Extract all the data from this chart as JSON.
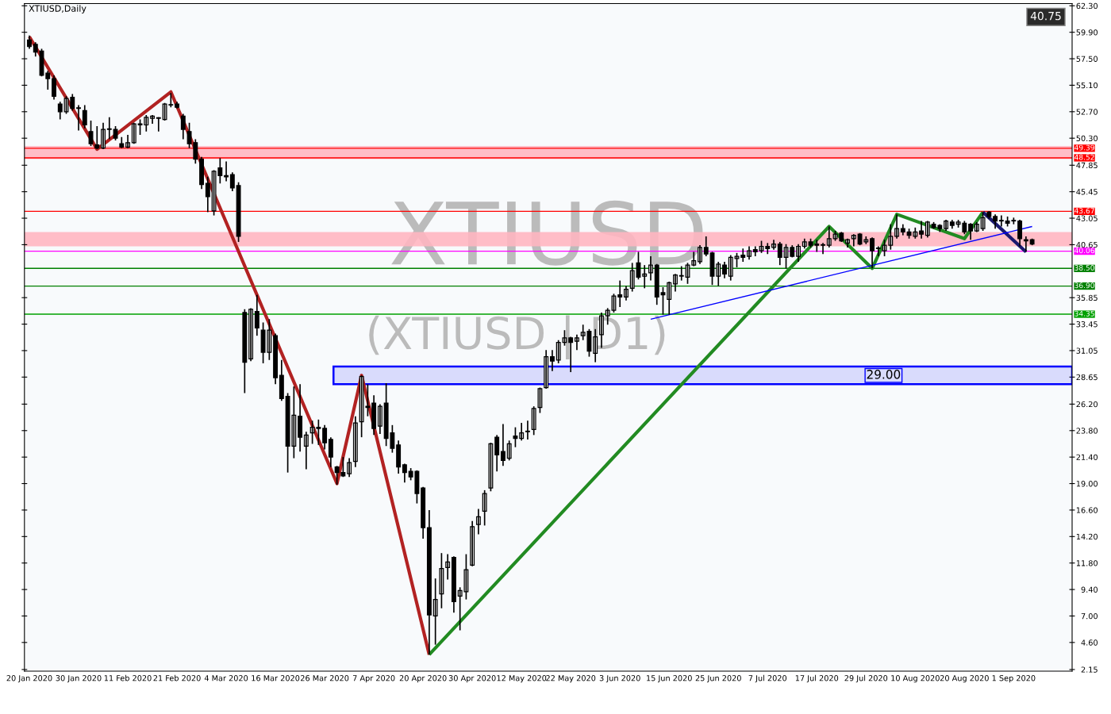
{
  "chart_data": {
    "type": "candlestick",
    "title": "XTIUSD,Daily",
    "color": "#000000",
    "categories": [
      "20 Jan 2020",
      null,
      null,
      null,
      null,
      null,
      null,
      null,
      "30 Jan 2020",
      null,
      null,
      null,
      null,
      null,
      null,
      null,
      "11 Feb 2020",
      null,
      null,
      null,
      null,
      null,
      null,
      null,
      "21 Feb 2020",
      null,
      null,
      null,
      null,
      null,
      null,
      null,
      "4 Mar 2020",
      null,
      null,
      null,
      null,
      null,
      null,
      null,
      "16 Mar 2020",
      null,
      null,
      null,
      null,
      null,
      null,
      null,
      "26 Mar 2020",
      null,
      null,
      null,
      null,
      null,
      null,
      null,
      "7 Apr 2020",
      null,
      null,
      null,
      null,
      null,
      null,
      null,
      "20 Apr 2020",
      null,
      null,
      null,
      null,
      null,
      null,
      null,
      "30 Apr 2020",
      null,
      null,
      null,
      null,
      null,
      null,
      null,
      "12 May 2020",
      null,
      null,
      null,
      null,
      null,
      null,
      null,
      "22 May 2020",
      null,
      null,
      null,
      null,
      null,
      null,
      null,
      "3 Jun 2020",
      null,
      null,
      null,
      null,
      null,
      null,
      null,
      "15 Jun 2020",
      null,
      null,
      null,
      null,
      null,
      null,
      null,
      "25 Jun 2020",
      null,
      null,
      null,
      null,
      null,
      null,
      null,
      "7 Jul 2020",
      null,
      null,
      null,
      null,
      null,
      null,
      null,
      "17 Jul 2020",
      null,
      null,
      null,
      null,
      null,
      null,
      null,
      "29 Jul 2020",
      null,
      null,
      null,
      null,
      null,
      null,
      null,
      "10 Aug 2020",
      null,
      null,
      null,
      null,
      null,
      null,
      null,
      "20 Aug 2020",
      null,
      null,
      null,
      null,
      null,
      null,
      null,
      "1 Sep 2020",
      null,
      null,
      null
    ],
    "ohlc": [
      [
        59.2,
        59.6,
        58.4,
        58.6
      ],
      [
        58.8,
        59.0,
        57.7,
        58.1
      ],
      [
        58.2,
        58.4,
        55.9,
        56.0
      ],
      [
        56.2,
        56.4,
        54.7,
        55.7
      ],
      [
        55.7,
        56.0,
        53.8,
        54.1
      ],
      [
        53.4,
        53.6,
        52.0,
        52.7
      ],
      [
        52.7,
        54.1,
        52.5,
        53.9
      ],
      [
        54.0,
        54.3,
        52.8,
        53.0
      ],
      [
        53.0,
        53.3,
        51.0,
        53.0
      ],
      [
        52.8,
        53.3,
        51.2,
        51.5
      ],
      [
        50.9,
        51.9,
        49.6,
        49.8
      ],
      [
        49.7,
        51.4,
        49.3,
        49.4
      ],
      [
        49.4,
        51.7,
        49.3,
        51.1
      ],
      [
        51.1,
        52.2,
        50.2,
        51.1
      ],
      [
        51.1,
        51.4,
        50.1,
        50.3
      ],
      [
        49.8,
        50.4,
        49.4,
        49.5
      ],
      [
        49.5,
        50.6,
        49.4,
        49.9
      ],
      [
        49.9,
        51.7,
        49.8,
        51.6
      ],
      [
        51.6,
        52.0,
        50.6,
        51.5
      ],
      [
        51.5,
        52.4,
        50.9,
        52.2
      ],
      [
        52.1,
        52.4,
        51.6,
        52.3
      ],
      [
        52.1,
        52.2,
        50.9,
        52.1
      ],
      [
        52.0,
        53.5,
        51.9,
        53.4
      ],
      [
        53.3,
        54.4,
        53.1,
        53.3
      ],
      [
        53.4,
        53.6,
        53.0,
        53.1
      ],
      [
        52.3,
        52.5,
        50.2,
        51.1
      ],
      [
        50.9,
        51.7,
        49.4,
        49.8
      ],
      [
        49.9,
        50.2,
        48.0,
        48.4
      ],
      [
        48.4,
        48.6,
        45.7,
        46.1
      ],
      [
        46.2,
        46.8,
        43.6,
        45.0
      ],
      [
        43.7,
        47.4,
        43.3,
        47.3
      ],
      [
        47.6,
        48.5,
        46.2,
        46.9
      ],
      [
        46.9,
        48.2,
        46.4,
        46.8
      ],
      [
        47.0,
        47.2,
        45.5,
        45.8
      ],
      [
        46.0,
        46.3,
        40.9,
        41.4
      ],
      [
        34.5,
        34.8,
        27.2,
        30.0
      ],
      [
        30.3,
        34.9,
        30.1,
        34.8
      ],
      [
        34.6,
        36.1,
        32.4,
        33.1
      ],
      [
        32.9,
        33.6,
        29.9,
        30.9
      ],
      [
        30.9,
        33.9,
        30.2,
        32.9
      ],
      [
        32.4,
        32.6,
        28.0,
        28.6
      ],
      [
        28.8,
        30.2,
        26.5,
        26.7
      ],
      [
        26.9,
        27.2,
        20.0,
        22.4
      ],
      [
        22.4,
        27.8,
        21.3,
        25.2
      ],
      [
        25.1,
        28.0,
        21.9,
        23.2
      ],
      [
        22.4,
        23.7,
        20.3,
        23.4
      ],
      [
        23.6,
        24.7,
        22.6,
        24.1
      ],
      [
        24.1,
        24.8,
        22.5,
        24.0
      ],
      [
        24.0,
        24.3,
        22.1,
        22.7
      ],
      [
        23.0,
        23.2,
        20.5,
        21.4
      ],
      [
        20.5,
        20.6,
        18.9,
        20.0
      ],
      [
        20.0,
        21.4,
        19.6,
        19.7
      ],
      [
        19.9,
        21.3,
        19.6,
        20.9
      ],
      [
        21.0,
        25.1,
        20.5,
        24.5
      ],
      [
        24.6,
        28.8,
        23.2,
        28.7
      ],
      [
        26.0,
        28.0,
        25.1,
        25.9
      ],
      [
        26.3,
        27.0,
        23.4,
        24.0
      ],
      [
        24.2,
        26.2,
        23.5,
        26.0
      ],
      [
        26.3,
        28.1,
        22.4,
        23.1
      ],
      [
        23.6,
        24.3,
        21.8,
        22.2
      ],
      [
        22.5,
        22.9,
        19.9,
        20.5
      ],
      [
        20.7,
        20.8,
        19.1,
        20.0
      ],
      [
        20.1,
        20.4,
        19.3,
        19.6
      ],
      [
        20.1,
        20.2,
        17.2,
        18.1
      ],
      [
        18.6,
        18.7,
        14.0,
        15.0
      ],
      [
        15.0,
        16.6,
        3.5,
        7.1
      ],
      [
        7.0,
        10.4,
        4.4,
        8.5
      ],
      [
        9.0,
        12.7,
        7.7,
        11.3
      ],
      [
        11.4,
        12.6,
        10.3,
        11.9
      ],
      [
        12.3,
        12.4,
        7.3,
        8.3
      ],
      [
        8.8,
        9.6,
        5.7,
        9.3
      ],
      [
        9.2,
        12.6,
        8.5,
        11.2
      ],
      [
        11.6,
        15.6,
        11.5,
        15.1
      ],
      [
        15.3,
        16.7,
        14.4,
        16.0
      ],
      [
        16.5,
        18.4,
        15.2,
        18.1
      ],
      [
        18.6,
        22.7,
        18.3,
        22.6
      ],
      [
        23.2,
        23.4,
        20.1,
        21.6
      ],
      [
        21.9,
        24.4,
        20.6,
        21.1
      ],
      [
        21.3,
        22.9,
        21.1,
        22.6
      ],
      [
        23.3,
        24.1,
        22.3,
        23.1
      ],
      [
        23.1,
        24.5,
        22.9,
        23.6
      ],
      [
        23.7,
        24.7,
        23.0,
        23.7
      ],
      [
        23.9,
        26.0,
        23.4,
        25.8
      ],
      [
        25.9,
        27.7,
        25.4,
        27.6
      ],
      [
        27.7,
        31.1,
        27.6,
        30.5
      ],
      [
        30.5,
        31.1,
        29.2,
        30.1
      ],
      [
        30.2,
        32.0,
        29.9,
        31.8
      ],
      [
        31.8,
        32.9,
        31.5,
        32.2
      ],
      [
        32.2,
        32.3,
        29.1,
        31.8
      ],
      [
        31.9,
        32.5,
        31.1,
        32.2
      ],
      [
        32.4,
        33.4,
        32.0,
        32.7
      ],
      [
        32.8,
        33.0,
        30.5,
        31.0
      ],
      [
        30.8,
        33.0,
        30.0,
        32.3
      ],
      [
        32.5,
        34.5,
        31.3,
        34.2
      ],
      [
        34.2,
        34.9,
        33.4,
        34.7
      ],
      [
        34.7,
        36.2,
        34.5,
        36.0
      ],
      [
        36.1,
        37.4,
        35.0,
        35.9
      ],
      [
        35.9,
        36.9,
        35.6,
        36.6
      ],
      [
        36.7,
        39.0,
        36.4,
        38.3
      ],
      [
        39.0,
        40.0,
        37.5,
        37.7
      ],
      [
        37.8,
        38.8,
        36.7,
        38.0
      ],
      [
        38.1,
        39.6,
        37.4,
        38.8
      ],
      [
        38.8,
        38.9,
        35.2,
        35.9
      ],
      [
        36.3,
        36.8,
        34.3,
        36.1
      ],
      [
        35.7,
        37.3,
        34.3,
        37.2
      ],
      [
        37.1,
        38.0,
        36.4,
        37.9
      ],
      [
        37.8,
        38.7,
        37.4,
        37.8
      ],
      [
        37.7,
        39.0,
        37.1,
        38.8
      ],
      [
        38.8,
        40.0,
        38.7,
        39.2
      ],
      [
        39.1,
        40.6,
        38.9,
        40.4
      ],
      [
        40.4,
        41.4,
        39.6,
        39.8
      ],
      [
        39.9,
        40.0,
        37.0,
        37.8
      ],
      [
        37.8,
        39.1,
        36.9,
        38.9
      ],
      [
        38.8,
        39.1,
        37.6,
        38.0
      ],
      [
        37.8,
        39.7,
        37.4,
        39.5
      ],
      [
        39.4,
        39.9,
        38.6,
        39.6
      ],
      [
        39.7,
        40.3,
        39.1,
        39.5
      ],
      [
        39.6,
        40.5,
        39.3,
        40.1
      ],
      [
        40.2,
        40.5,
        39.6,
        40.0
      ],
      [
        40.1,
        41.0,
        39.9,
        40.5
      ],
      [
        40.5,
        40.8,
        39.8,
        40.3
      ],
      [
        40.4,
        41.1,
        40.2,
        40.7
      ],
      [
        40.7,
        40.9,
        38.8,
        39.5
      ],
      [
        39.5,
        40.7,
        38.5,
        40.4
      ],
      [
        40.4,
        40.6,
        39.5,
        39.6
      ],
      [
        39.6,
        40.7,
        39.1,
        40.5
      ],
      [
        40.5,
        41.2,
        40.3,
        40.9
      ],
      [
        40.9,
        41.2,
        40.4,
        40.6
      ],
      [
        40.7,
        41.1,
        40.0,
        40.6
      ],
      [
        40.6,
        40.8,
        39.8,
        40.6
      ],
      [
        40.6,
        42.3,
        40.4,
        41.2
      ],
      [
        41.2,
        41.9,
        41.0,
        41.6
      ],
      [
        41.7,
        41.8,
        40.9,
        41.0
      ],
      [
        40.8,
        41.2,
        40.4,
        41.1
      ],
      [
        41.2,
        41.6,
        40.5,
        41.5
      ],
      [
        41.6,
        41.7,
        40.6,
        40.7
      ],
      [
        40.9,
        41.4,
        40.7,
        41.1
      ],
      [
        41.2,
        41.3,
        38.5,
        40.1
      ],
      [
        40.3,
        40.5,
        39.6,
        40.3
      ],
      [
        40.1,
        41.1,
        39.6,
        40.6
      ],
      [
        40.6,
        42.5,
        40.2,
        41.4
      ],
      [
        41.4,
        43.4,
        41.2,
        42.1
      ],
      [
        42.1,
        42.5,
        41.5,
        41.8
      ],
      [
        41.8,
        42.1,
        41.2,
        41.5
      ],
      [
        41.4,
        42.2,
        41.2,
        41.8
      ],
      [
        41.9,
        42.8,
        41.2,
        41.6
      ],
      [
        41.5,
        42.8,
        41.3,
        42.7
      ],
      [
        42.5,
        42.7,
        42.1,
        42.2
      ],
      [
        42.4,
        42.5,
        41.8,
        42.1
      ],
      [
        42.1,
        42.9,
        41.9,
        42.8
      ],
      [
        42.7,
        42.9,
        42.1,
        42.4
      ],
      [
        42.5,
        42.9,
        42.2,
        42.7
      ],
      [
        42.6,
        42.8,
        41.6,
        41.8
      ],
      [
        42.5,
        42.6,
        41.1,
        41.9
      ],
      [
        41.9,
        42.7,
        41.8,
        42.5
      ],
      [
        42.1,
        43.6,
        41.9,
        43.1
      ],
      [
        43.6,
        43.7,
        43.0,
        43.2
      ],
      [
        43.2,
        43.4,
        42.1,
        42.8
      ],
      [
        42.8,
        43.3,
        42.3,
        42.8
      ],
      [
        42.8,
        43.2,
        42.3,
        42.6
      ],
      [
        42.8,
        43.1,
        42.5,
        42.8
      ],
      [
        42.8,
        42.9,
        40.5,
        41.2
      ],
      [
        41.1,
        41.4,
        40.0,
        41.0
      ],
      [
        41.1,
        41.2,
        40.6,
        40.7
      ]
    ],
    "series": [
      {
        "type": "line",
        "color": "#b22222",
        "values": [
          59.5,
          null,
          null,
          null,
          null,
          null,
          null,
          null,
          null,
          null,
          null,
          49.3,
          null,
          null,
          null,
          null,
          null,
          null,
          null,
          null,
          null,
          null,
          null,
          54.5,
          null,
          null,
          null,
          null,
          null,
          null,
          null,
          null,
          null,
          null,
          null,
          null,
          null,
          null,
          null,
          null,
          null,
          null,
          null,
          null,
          null,
          null,
          null,
          null,
          null,
          null,
          19.0,
          null,
          null,
          null,
          28.8,
          null,
          null,
          null,
          null,
          null,
          null,
          null,
          null,
          null,
          null,
          3.5,
          null,
          null,
          null,
          null,
          null,
          null,
          null,
          null,
          null,
          null,
          null,
          null,
          null,
          null,
          null,
          null,
          null,
          null,
          null,
          null,
          null,
          null,
          null,
          null,
          null,
          null,
          null,
          null,
          null,
          null,
          null,
          null,
          null,
          null,
          null,
          null,
          null,
          null,
          null,
          null,
          null,
          null,
          null,
          null,
          null,
          null,
          null,
          null,
          null,
          null,
          null,
          null,
          null,
          null,
          null,
          null,
          null,
          null,
          null,
          null,
          null,
          null,
          null,
          null,
          null,
          null,
          null,
          null,
          null,
          null,
          null,
          null,
          null,
          null,
          null,
          null,
          null,
          null,
          null,
          null,
          null,
          null,
          null,
          null,
          null,
          null,
          null,
          null,
          null,
          null,
          null,
          null,
          null,
          null,
          null,
          null,
          null,
          null
        ]
      },
      {
        "type": "line",
        "color": "#228b22",
        "values": [
          null,
          null,
          null,
          null,
          null,
          null,
          null,
          null,
          null,
          null,
          null,
          null,
          null,
          null,
          null,
          null,
          null,
          null,
          null,
          null,
          null,
          null,
          null,
          null,
          null,
          null,
          null,
          null,
          null,
          null,
          null,
          null,
          null,
          null,
          null,
          null,
          null,
          null,
          null,
          null,
          null,
          null,
          null,
          null,
          null,
          null,
          null,
          null,
          null,
          null,
          null,
          null,
          null,
          null,
          null,
          null,
          null,
          null,
          null,
          null,
          null,
          null,
          null,
          null,
          null,
          3.5,
          null,
          null,
          null,
          null,
          null,
          null,
          null,
          null,
          null,
          null,
          null,
          null,
          null,
          null,
          null,
          null,
          null,
          null,
          null,
          null,
          null,
          null,
          null,
          null,
          null,
          null,
          null,
          null,
          null,
          null,
          null,
          null,
          null,
          null,
          null,
          null,
          null,
          null,
          null,
          null,
          null,
          null,
          null,
          null,
          null,
          null,
          null,
          null,
          null,
          null,
          null,
          null,
          null,
          null,
          null,
          null,
          null,
          null,
          null,
          null,
          null,
          null,
          null,
          null,
          42.3,
          null,
          null,
          null,
          null,
          null,
          null,
          38.5,
          null,
          null,
          null,
          43.4,
          null,
          null,
          null,
          null,
          null,
          null,
          null,
          null,
          null,
          null,
          41.2,
          null,
          null,
          43.6,
          null,
          null,
          null,
          null,
          null,
          null,
          null,
          null
        ]
      },
      {
        "type": "line",
        "color": "#191970",
        "values": [
          null,
          null,
          null,
          null,
          null,
          null,
          null,
          null,
          null,
          null,
          null,
          null,
          null,
          null,
          null,
          null,
          null,
          null,
          null,
          null,
          null,
          null,
          null,
          null,
          null,
          null,
          null,
          null,
          null,
          null,
          null,
          null,
          null,
          null,
          null,
          null,
          null,
          null,
          null,
          null,
          null,
          null,
          null,
          null,
          null,
          null,
          null,
          null,
          null,
          null,
          null,
          null,
          null,
          null,
          null,
          null,
          null,
          null,
          null,
          null,
          null,
          null,
          null,
          null,
          null,
          null,
          null,
          null,
          null,
          null,
          null,
          null,
          null,
          null,
          null,
          null,
          null,
          null,
          null,
          null,
          null,
          null,
          null,
          null,
          null,
          null,
          null,
          null,
          null,
          null,
          null,
          null,
          null,
          null,
          null,
          null,
          null,
          null,
          null,
          null,
          null,
          null,
          null,
          null,
          null,
          null,
          null,
          null,
          null,
          null,
          null,
          null,
          null,
          null,
          null,
          null,
          null,
          null,
          null,
          null,
          null,
          null,
          null,
          null,
          null,
          null,
          null,
          null,
          null,
          null,
          null,
          null,
          null,
          null,
          null,
          null,
          null,
          null,
          null,
          null,
          null,
          null,
          null,
          null,
          null,
          null,
          null,
          null,
          null,
          null,
          null,
          null,
          null,
          null,
          null,
          43.6,
          null,
          null,
          null,
          null,
          null,
          null,
          40.0,
          null
        ]
      },
      {
        "type": "line",
        "color": "#0000ff",
        "values": [
          null,
          null,
          null,
          null,
          null,
          null,
          null,
          null,
          null,
          null,
          null,
          null,
          null,
          null,
          null,
          null,
          null,
          null,
          null,
          null,
          null,
          null,
          null,
          null,
          null,
          null,
          null,
          null,
          null,
          null,
          null,
          null,
          null,
          null,
          null,
          null,
          null,
          null,
          null,
          null,
          null,
          null,
          null,
          null,
          null,
          null,
          null,
          null,
          null,
          null,
          null,
          null,
          null,
          null,
          null,
          null,
          null,
          null,
          null,
          null,
          null,
          null,
          null,
          null,
          null,
          null,
          null,
          null,
          null,
          null,
          null,
          null,
          null,
          null,
          null,
          null,
          null,
          null,
          null,
          null,
          null,
          null,
          null,
          null,
          null,
          null,
          null,
          null,
          null,
          null,
          null,
          null,
          null,
          null,
          null,
          null,
          null,
          null,
          null,
          null,
          null,
          33.9,
          null,
          null,
          null,
          null,
          null,
          null,
          null,
          null,
          null,
          null,
          null,
          null,
          null,
          null,
          null,
          null,
          null,
          null,
          null,
          null,
          null,
          null,
          null,
          null,
          null,
          null,
          null,
          null,
          null,
          null,
          null,
          null,
          null,
          null,
          null,
          null,
          null,
          null,
          null,
          null,
          null,
          null,
          null,
          null,
          null,
          null,
          null,
          null,
          null,
          null,
          null,
          null,
          null,
          null,
          null,
          null,
          null,
          null,
          null,
          null,
          null,
          42.3
        ]
      }
    ],
    "ylim": [
      2.0,
      62.5
    ],
    "yticks": [
      {
        "value": 62.3,
        "label": "62.30"
      },
      {
        "value": 59.9,
        "label": "59.90"
      },
      {
        "value": 57.5,
        "label": "57.50"
      },
      {
        "value": 55.1,
        "label": "55.10"
      },
      {
        "value": 52.7,
        "label": "52.70"
      },
      {
        "value": 50.3,
        "label": "50.30"
      },
      {
        "value": 47.85,
        "label": "47.85"
      },
      {
        "value": 45.45,
        "label": "45.45"
      },
      {
        "value": 43.05,
        "label": "43.05"
      },
      {
        "value": 40.65,
        "label": "40.65"
      },
      {
        "value": 35.85,
        "label": "35.85"
      },
      {
        "value": 33.45,
        "label": "33.45"
      },
      {
        "value": 31.05,
        "label": "31.05"
      },
      {
        "value": 28.65,
        "label": "28.65"
      },
      {
        "value": 26.2,
        "label": "26.20"
      },
      {
        "value": 23.8,
        "label": "23.80"
      },
      {
        "value": 21.4,
        "label": "21.40"
      },
      {
        "value": 19.0,
        "label": "19.00"
      },
      {
        "value": 16.6,
        "label": "16.60"
      },
      {
        "value": 14.2,
        "label": "14.20"
      },
      {
        "value": 11.8,
        "label": "11.80"
      },
      {
        "value": 9.4,
        "label": "9.40"
      },
      {
        "value": 7.0,
        "label": "7.00"
      },
      {
        "value": 4.6,
        "label": "4.60"
      },
      {
        "value": 2.15,
        "label": "2.15"
      }
    ],
    "ref_lines": [
      {
        "axis": "y",
        "value": 49.39,
        "label": "49.39",
        "color": "#ff0000"
      },
      {
        "axis": "y",
        "value": 48.52,
        "label": "48.52",
        "color": "#ff0000"
      },
      {
        "axis": "y",
        "value": 43.67,
        "label": "43.67",
        "color": "#ff0000"
      },
      {
        "axis": "y",
        "value": 40.06,
        "label": "40.06",
        "color": "#ff00ff"
      },
      {
        "axis": "y",
        "value": 38.5,
        "label": "38.50",
        "color": "#008000"
      },
      {
        "axis": "y",
        "value": 36.9,
        "label": "36.90",
        "color": "#008000"
      },
      {
        "axis": "y",
        "value": 34.35,
        "label": "34.35",
        "color": "#00a000"
      }
    ],
    "bands": [
      {
        "axis": "y",
        "from": 48.4,
        "to": 49.6,
        "color": "#ffb6c1"
      },
      {
        "axis": "y",
        "from": 40.5,
        "to": 41.8,
        "color": "#ffb6c1"
      },
      {
        "axis": "y",
        "from": 28.0,
        "to": 29.6,
        "label": "29.00",
        "color": "#0000ff"
      }
    ],
    "annotations": [
      "40.75",
      "XTIUSD",
      "(XTIUSD | D1)"
    ],
    "grid": false,
    "legend": false
  }
}
